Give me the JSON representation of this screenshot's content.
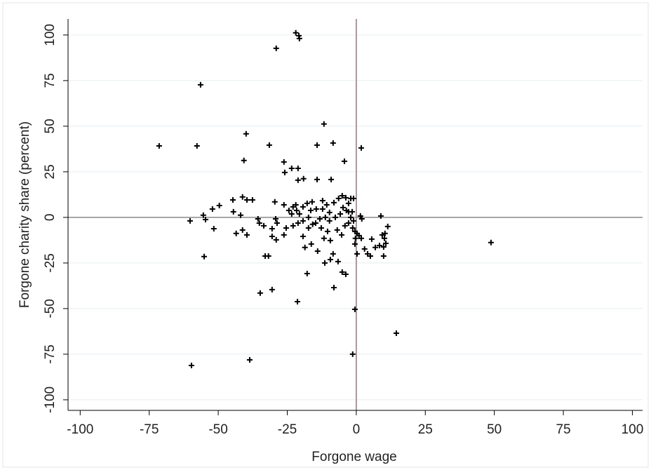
{
  "chart_data": {
    "type": "scatter",
    "x_label": "Forgone wage",
    "y_label": "Forgone charity share (percent)",
    "color": "#000000",
    "grid": true,
    "xlim": [
      -104.4,
      103.7
    ],
    "ylim": [
      -105.8,
      108.8
    ],
    "xticks": [
      -100,
      -75,
      -50,
      -25,
      0,
      25,
      50,
      75,
      100
    ],
    "yticks": [
      -100,
      -75,
      -50,
      -25,
      0,
      25,
      50,
      75,
      100
    ],
    "x": [
      -21.9,
      -20.8,
      -20.6,
      -29,
      -56.4,
      -11.7,
      -39.9,
      -71.4,
      -57.7,
      -31.5,
      -14.2,
      -8.4,
      1.8,
      -40.7,
      -26.2,
      -4.3,
      -25.9,
      -23.4,
      -21.1,
      -19.1,
      -21.1,
      -14.2,
      -9.1,
      -41.2,
      -39.6,
      -37.6,
      -44.7,
      -49.6,
      -52.1,
      -44.5,
      -41.9,
      -55.4,
      -54.6,
      -60.2,
      -51.6,
      -41.2,
      -43.5,
      -39.6,
      -35.6,
      -35.1,
      -33.5,
      -30.5,
      -29.2,
      -28.7,
      -29.5,
      -26.2,
      -22.9,
      -21.6,
      -20.6,
      -19.3,
      -17.8,
      -16.5,
      -16,
      -14.5,
      -12.2,
      -10.7,
      -9.7,
      -8.1,
      -6.4,
      -5.1,
      -3.8,
      -2,
      -1,
      -2.8,
      -4.8,
      -5.8,
      -7.6,
      -9.7,
      -11.2,
      -13.2,
      -14.7,
      -17.3,
      -19.3,
      -21.1,
      -22.9,
      -25.4,
      -26.2,
      -29,
      -30.5,
      -33,
      -31.8,
      -55.1,
      -19.3,
      -17.3,
      -18.6,
      -16.3,
      -14,
      -11.7,
      -10.4,
      -9.4,
      -11.4,
      -9.4,
      -8.4,
      -6.6,
      -5.1,
      -3.8,
      -8.1,
      -17.8,
      -21.3,
      -30.5,
      -34.8,
      -0.5,
      -1.3,
      -38.6,
      -59.7,
      14.5,
      48.8,
      -6.9,
      -5.3,
      -4.1,
      -2.8,
      -2,
      -1.5,
      -1,
      -0.5,
      0.3,
      1,
      1.5,
      2,
      -0.3,
      -0.5,
      0.3,
      1.8,
      3,
      4.1,
      5.1,
      5.6,
      6.9,
      8.4,
      8.9,
      9.4,
      10.2,
      9.9,
      9.9,
      10.7,
      11.4,
      10.4,
      -12.2,
      -23.4,
      -21.9,
      -24.4,
      -15.8,
      -12.7,
      -2.8,
      -3.6,
      -1.3
    ],
    "values": [
      101.2,
      99.6,
      98.1,
      92.7,
      72.7,
      51.2,
      45.8,
      39.2,
      39.2,
      39.6,
      39.6,
      40.8,
      38.1,
      31.2,
      30.4,
      30.8,
      24.6,
      26.9,
      26.9,
      21.2,
      20.4,
      20.8,
      20.8,
      11.2,
      9.6,
      9.6,
      9.6,
      6.5,
      4.6,
      3.1,
      1.2,
      1.2,
      -1.2,
      -1.9,
      -6.2,
      -6.9,
      -8.8,
      -9.6,
      -0.8,
      -3.1,
      -4.6,
      -6.2,
      -0.8,
      -3.1,
      8.5,
      6.9,
      5.8,
      3.8,
      1.9,
      5.8,
      7.7,
      3.8,
      8.5,
      4.6,
      9.2,
      6.9,
      2.7,
      8.1,
      10.4,
      11.9,
      10.8,
      10.4,
      10.4,
      7.7,
      5.4,
      1.9,
      0,
      -1.9,
      0,
      -0.8,
      -3.1,
      0,
      -1.9,
      -3.1,
      -4.6,
      -5.8,
      -9.6,
      -12.3,
      -10.4,
      -21.2,
      -21.2,
      -21.5,
      -10.4,
      -5.8,
      -16.5,
      -14.6,
      -18.5,
      -11.5,
      -7.7,
      -12.7,
      -25,
      -23.1,
      -20,
      -24.2,
      -30,
      -31.2,
      -38.5,
      -30.8,
      -46.2,
      -39.6,
      -41.5,
      -50.4,
      -75,
      -78.1,
      -81.2,
      -63.5,
      -13.8,
      -6.9,
      -9.6,
      -4.6,
      -3.1,
      0,
      3.1,
      -1.9,
      -7.7,
      -8.8,
      -10,
      0.8,
      -0.8,
      -11.5,
      -14.6,
      -20,
      -11.5,
      -17.3,
      -20,
      -21.2,
      -11.9,
      -16.5,
      -15.4,
      0.8,
      -9.6,
      -11.5,
      -16.2,
      -21.2,
      -14.2,
      -5,
      -8.8,
      4.6,
      1.9,
      6.9,
      3.8,
      -3.8,
      -5.8,
      3.1,
      3.8,
      -5.8
    ]
  }
}
